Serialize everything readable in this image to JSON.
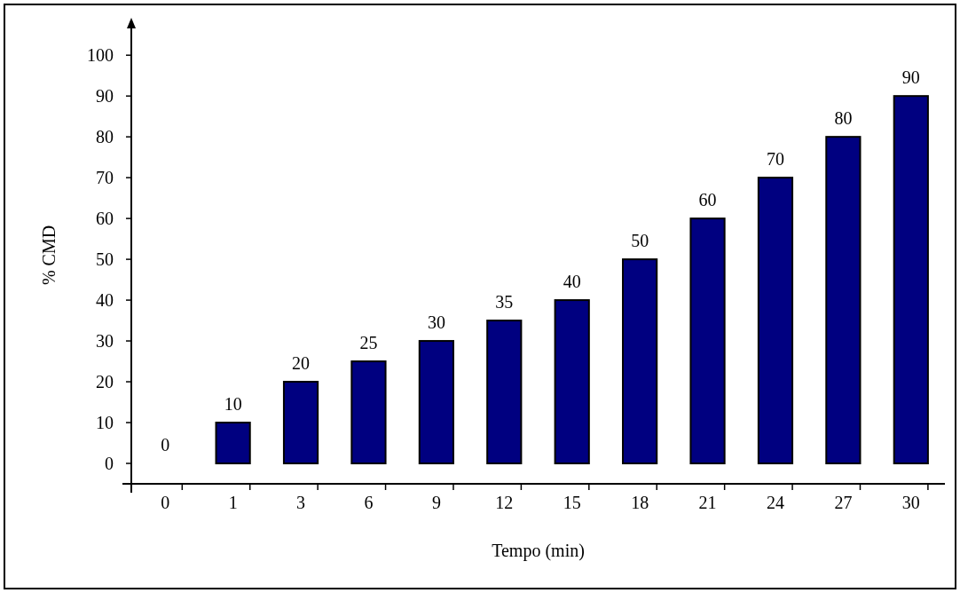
{
  "chart_data": {
    "type": "bar",
    "xlabel": "Tempo (min)",
    "ylabel": "% CMD",
    "categories": [
      "0",
      "1",
      "3",
      "6",
      "9",
      "12",
      "15",
      "18",
      "21",
      "24",
      "27",
      "30"
    ],
    "values": [
      0,
      10,
      20,
      25,
      30,
      35,
      40,
      50,
      60,
      70,
      80,
      90
    ],
    "color": "#000080",
    "ylim": [
      -5,
      107
    ],
    "yticks": [
      0,
      10,
      20,
      30,
      40,
      50,
      60,
      70,
      80,
      90,
      100
    ],
    "data_labels": true
  }
}
